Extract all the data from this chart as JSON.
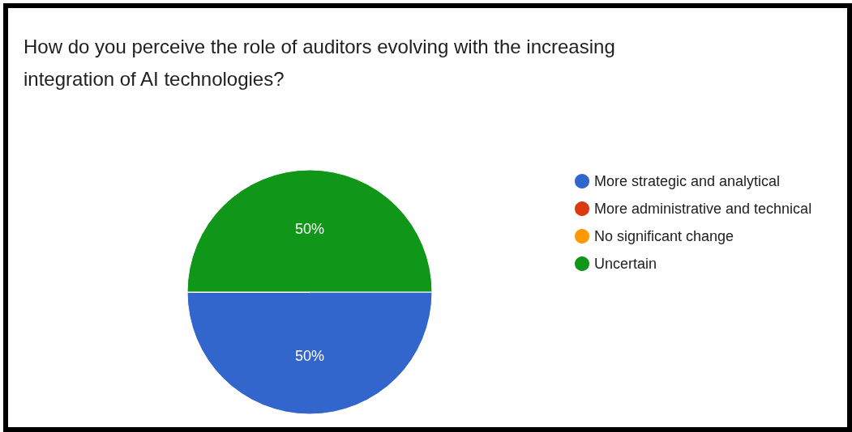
{
  "chart_data": {
    "type": "pie",
    "title": "How do you perceive the role of auditors evolving with the increasing integration of AI technologies?",
    "categories": [
      "More strategic and analytical",
      "More administrative and technical",
      "No significant change",
      "Uncertain"
    ],
    "values": [
      50,
      0,
      0,
      50
    ],
    "colors": [
      "#3366cc",
      "#dc3912",
      "#ff9900",
      "#109618"
    ],
    "value_labels": [
      "50%",
      null,
      null,
      "50%"
    ],
    "legend": "right"
  }
}
